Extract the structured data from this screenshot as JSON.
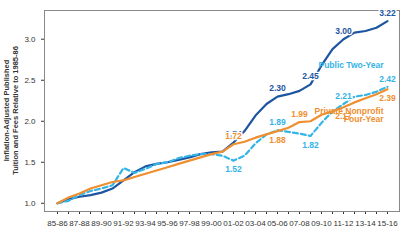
{
  "chart_data": {
    "type": "line",
    "y_label": "Inflation-Adjusted Published Tuition and Fees Relative to 1985-86",
    "categories": [
      "85-86",
      null,
      "87-88",
      null,
      "89-90",
      null,
      "91-92",
      null,
      "93-94",
      null,
      "95-96",
      null,
      "97-98",
      null,
      "99-00",
      null,
      "01-02",
      null,
      "03-04",
      null,
      "05-06",
      null,
      "07-08",
      null,
      "09-10",
      null,
      "11-12",
      null,
      "13-14",
      null,
      "15-16"
    ],
    "series": [
      {
        "name": null,
        "color": "#1d56a0",
        "line_style": "solid",
        "values": [
          1.0,
          1.05,
          1.08,
          1.1,
          1.13,
          1.18,
          1.28,
          1.38,
          1.45,
          1.48,
          1.5,
          1.53,
          1.56,
          1.6,
          1.62,
          1.63,
          1.74,
          1.88,
          2.07,
          2.21,
          2.3,
          2.33,
          2.37,
          2.45,
          2.68,
          2.88,
          3.0,
          3.08,
          3.1,
          3.14,
          3.22
        ],
        "value_labels": [
          null,
          null,
          null,
          null,
          null,
          null,
          null,
          null,
          null,
          null,
          null,
          null,
          null,
          null,
          null,
          null,
          "1.74",
          null,
          null,
          null,
          "2.30",
          null,
          null,
          "2.45",
          null,
          null,
          "3.00",
          null,
          null,
          null,
          "3.22"
        ]
      },
      {
        "name": "Public Two-Year",
        "color": "#35b4e6",
        "line_style": "dashed",
        "values": [
          1.0,
          1.03,
          1.1,
          1.15,
          1.18,
          1.22,
          1.43,
          1.37,
          1.42,
          1.48,
          1.5,
          1.55,
          1.58,
          1.6,
          1.6,
          1.58,
          1.52,
          1.58,
          1.73,
          1.84,
          1.89,
          1.87,
          1.85,
          1.82,
          1.98,
          2.12,
          2.21,
          2.3,
          2.32,
          2.36,
          2.42
        ],
        "value_labels": [
          null,
          null,
          null,
          null,
          null,
          null,
          null,
          null,
          null,
          null,
          null,
          null,
          null,
          null,
          null,
          null,
          "1.52",
          null,
          null,
          null,
          "1.89",
          null,
          null,
          "1.82",
          null,
          null,
          "2.21",
          null,
          null,
          null,
          "2.42"
        ]
      },
      {
        "name": "Private Nonprofit Four-Year",
        "color": "#ef8f2f",
        "line_style": "solid",
        "values": [
          1.0,
          1.07,
          1.12,
          1.18,
          1.22,
          1.26,
          1.28,
          1.32,
          1.36,
          1.4,
          1.44,
          1.48,
          1.52,
          1.56,
          1.6,
          1.63,
          1.72,
          1.75,
          1.8,
          1.84,
          1.88,
          1.92,
          1.99,
          2.0,
          2.08,
          2.12,
          2.17,
          2.23,
          2.28,
          2.33,
          2.39
        ],
        "value_labels": [
          null,
          null,
          null,
          null,
          null,
          null,
          null,
          null,
          null,
          null,
          null,
          null,
          null,
          null,
          null,
          null,
          "1.72",
          null,
          null,
          null,
          "1.88",
          null,
          "1.99",
          null,
          null,
          null,
          "2.17",
          null,
          null,
          null,
          "2.39"
        ]
      }
    ],
    "ylim": [
      0.9,
      3.35
    ],
    "yticks": [
      {
        "value": 1,
        "label": "1.0"
      },
      {
        "value": 1.5,
        "label": "1.5"
      },
      {
        "value": 2,
        "label": "2.0"
      },
      {
        "value": 2.5,
        "label": "2.5"
      },
      {
        "value": 3,
        "label": "3.0"
      }
    ],
    "grid": false,
    "data_labels": true
  }
}
